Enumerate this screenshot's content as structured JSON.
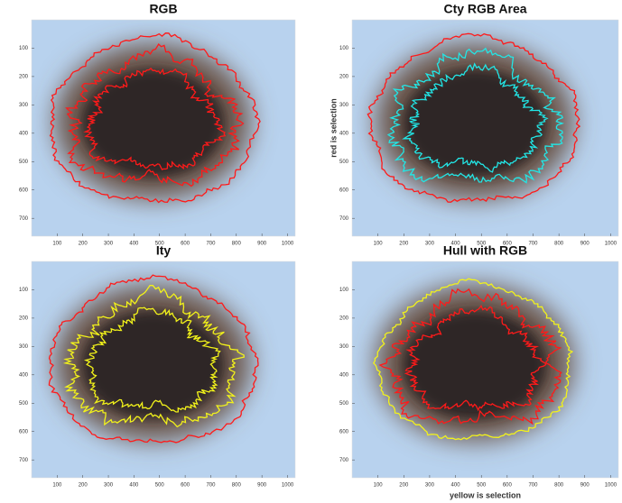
{
  "chart_data": [
    {
      "type": "image",
      "title": "RGB",
      "xlim": [
        0,
        1030
      ],
      "ylim": [
        0,
        763
      ],
      "y_reversed": true,
      "xticks": [
        100,
        200,
        300,
        400,
        500,
        600,
        700,
        800,
        900,
        1000
      ],
      "yticks": [
        100,
        200,
        300,
        400,
        500,
        600,
        700
      ],
      "contour_colors": [
        "#ff1a1a",
        "#ff1a1a",
        "#ff1a1a"
      ]
    },
    {
      "type": "image",
      "title": "Cty RGB Area",
      "ylabel": "red is selection",
      "xlim": [
        0,
        1030
      ],
      "ylim": [
        0,
        763
      ],
      "y_reversed": true,
      "xticks": [
        100,
        200,
        300,
        400,
        500,
        600,
        700,
        800,
        900,
        1000
      ],
      "yticks": [
        100,
        200,
        300,
        400,
        500,
        600,
        700
      ],
      "contour_colors": [
        "#ff1a1a",
        "#22e6e6",
        "#22e6e6"
      ]
    },
    {
      "type": "image",
      "title": "Ity",
      "xlim": [
        0,
        1030
      ],
      "ylim": [
        0,
        763
      ],
      "y_reversed": true,
      "xticks": [
        100,
        200,
        300,
        400,
        500,
        600,
        700,
        800,
        900,
        1000
      ],
      "yticks": [
        100,
        200,
        300,
        400,
        500,
        600,
        700
      ],
      "contour_colors": [
        "#ff1a1a",
        "#f2f21a",
        "#f2f21a"
      ]
    },
    {
      "type": "image",
      "title": "Hull with RGB",
      "xlabel": "yellow is selection",
      "xlim": [
        0,
        1030
      ],
      "ylim": [
        0,
        763
      ],
      "y_reversed": true,
      "xticks": [
        100,
        200,
        300,
        400,
        500,
        600,
        700,
        800,
        900,
        1000
      ],
      "yticks": [
        100,
        200,
        300,
        400,
        500,
        600,
        700
      ],
      "contour_colors": [
        "#f2f21a",
        "#ff1a1a",
        "#ff1a1a"
      ]
    }
  ]
}
